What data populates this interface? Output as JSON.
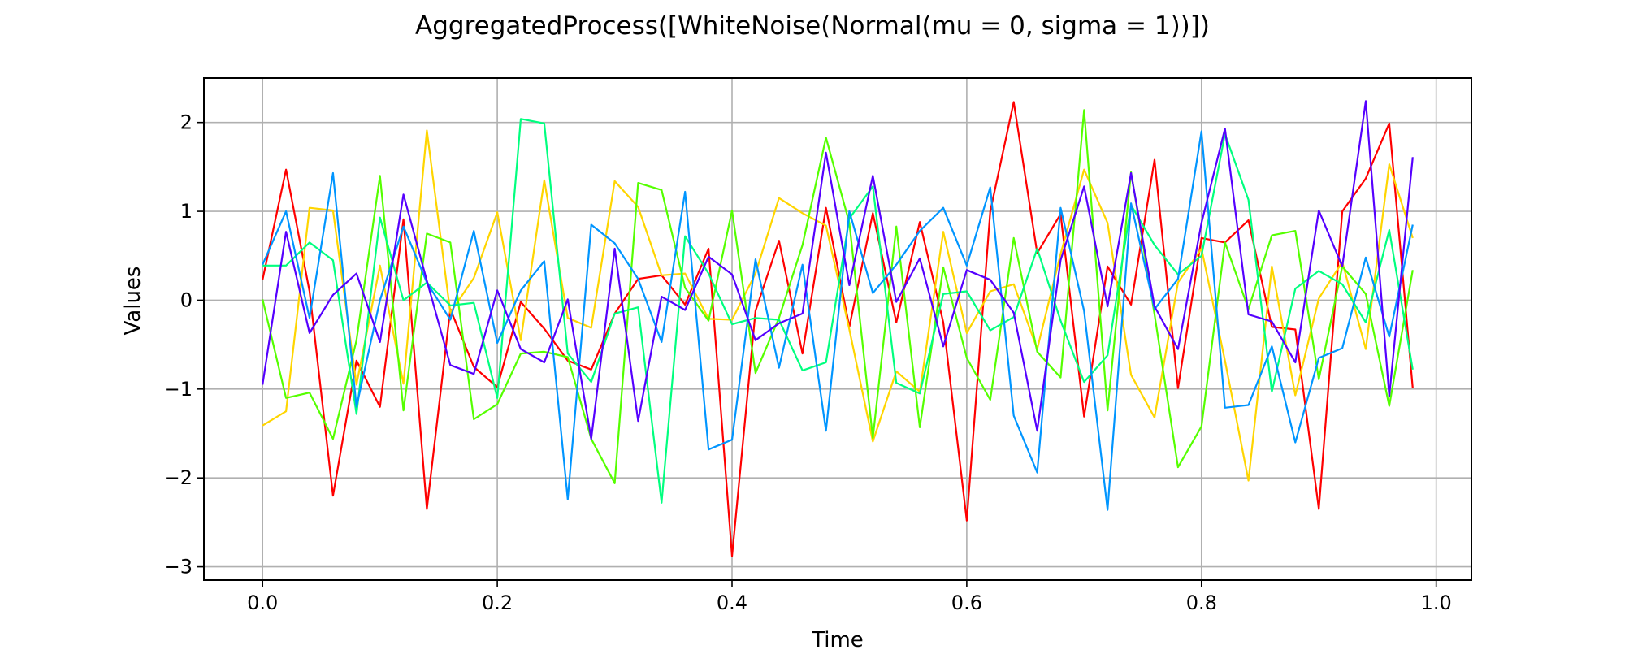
{
  "chart_data": {
    "type": "line",
    "title": "AggregatedProcess([WhiteNoise(Normal(mu = 0, sigma = 1))])",
    "xlabel": "Time",
    "ylabel": "Values",
    "xlim": [
      -0.05,
      1.03
    ],
    "ylim": [
      -3.15,
      2.5
    ],
    "x_ticks": [
      0.0,
      0.2,
      0.4,
      0.6,
      0.8,
      1.0
    ],
    "x_tick_labels": [
      "0.0",
      "0.2",
      "0.4",
      "0.6",
      "0.8",
      "1.0"
    ],
    "y_ticks": [
      2,
      1,
      0,
      -1,
      -2,
      -3
    ],
    "y_tick_labels": [
      "2",
      "1",
      "0",
      "−1",
      "−2",
      "−3"
    ],
    "grid": true,
    "x": [
      0.0,
      0.02,
      0.04,
      0.06,
      0.08,
      0.1,
      0.12,
      0.14,
      0.16,
      0.18,
      0.2,
      0.22,
      0.24,
      0.26,
      0.28,
      0.3,
      0.32,
      0.34,
      0.36,
      0.38,
      0.4,
      0.42,
      0.44,
      0.46,
      0.48,
      0.5,
      0.52,
      0.54,
      0.56,
      0.58,
      0.6,
      0.62,
      0.64,
      0.66,
      0.68,
      0.7,
      0.72,
      0.74,
      0.76,
      0.78,
      0.8,
      0.82,
      0.84,
      0.86,
      0.88,
      0.9,
      0.92,
      0.94,
      0.96,
      0.98
    ],
    "series": [
      {
        "color": "#ff0000",
        "values": [
          0.23,
          1.47,
          0.1,
          -2.2,
          -0.68,
          -1.2,
          0.91,
          -2.35,
          -0.1,
          -0.75,
          -0.98,
          -0.02,
          -0.32,
          -0.68,
          -0.78,
          -0.15,
          0.24,
          0.28,
          -0.05,
          0.58,
          -2.88,
          -0.12,
          0.67,
          -0.6,
          1.04,
          -0.3,
          0.98,
          -0.25,
          0.88,
          -0.25,
          -2.48,
          1.0,
          2.23,
          0.53,
          0.97,
          -1.31,
          0.38,
          -0.05,
          1.58,
          -0.99,
          0.7,
          0.65,
          0.9,
          -0.3,
          -0.33,
          -2.35,
          1.0,
          1.37,
          1.99,
          -0.99
        ]
      },
      {
        "color": "#ffd500",
        "values": [
          -1.41,
          -1.25,
          1.04,
          1.01,
          -0.95,
          0.39,
          -0.94,
          1.91,
          -0.14,
          0.25,
          0.99,
          -0.45,
          1.35,
          -0.2,
          -0.31,
          1.34,
          1.05,
          0.28,
          0.3,
          -0.21,
          -0.22,
          0.3,
          1.15,
          0.98,
          0.84,
          -0.33,
          -1.59,
          -0.8,
          -1.03,
          0.77,
          -0.37,
          0.1,
          0.18,
          -0.55,
          0.52,
          1.47,
          0.87,
          -0.84,
          -1.32,
          0.2,
          0.58,
          -0.68,
          -2.03,
          0.38,
          -1.07,
          0.02,
          0.43,
          -0.55,
          1.53,
          0.7
        ]
      },
      {
        "color": "#55ff00",
        "values": [
          0.01,
          -1.1,
          -1.04,
          -1.56,
          -0.45,
          1.4,
          -1.24,
          0.75,
          0.65,
          -1.34,
          -1.17,
          -0.6,
          -0.58,
          -0.64,
          -1.56,
          -2.06,
          1.32,
          1.24,
          0.14,
          -0.23,
          1.01,
          -0.82,
          -0.2,
          0.62,
          1.83,
          0.87,
          -1.55,
          0.83,
          -1.43,
          0.37,
          -0.65,
          -1.12,
          0.7,
          -0.58,
          -0.87,
          2.14,
          -1.24,
          1.44,
          -0.16,
          -1.88,
          -1.42,
          0.65,
          -0.1,
          0.73,
          0.78,
          -0.89,
          0.38,
          0.07,
          -1.19,
          0.34
        ]
      },
      {
        "color": "#00ff7f",
        "values": [
          0.39,
          0.39,
          0.65,
          0.45,
          -1.28,
          0.93,
          0.0,
          0.2,
          -0.06,
          -0.03,
          -1.1,
          2.04,
          1.99,
          -0.6,
          -0.92,
          -0.15,
          -0.08,
          -2.28,
          0.72,
          0.3,
          -0.27,
          -0.2,
          -0.22,
          -0.79,
          -0.7,
          0.92,
          1.28,
          -0.93,
          -1.05,
          0.07,
          0.1,
          -0.34,
          -0.19,
          0.58,
          -0.23,
          -0.92,
          -0.62,
          1.07,
          0.62,
          0.29,
          0.5,
          1.87,
          1.13,
          -1.03,
          0.13,
          0.33,
          0.18,
          -0.25,
          0.79,
          -0.78
        ]
      },
      {
        "color": "#0095ff",
        "values": [
          0.4,
          1.0,
          -0.2,
          1.43,
          -1.2,
          0.0,
          0.83,
          0.2,
          -0.22,
          0.78,
          -0.48,
          0.11,
          0.44,
          -2.24,
          0.85,
          0.64,
          0.24,
          -0.47,
          1.22,
          -1.68,
          -1.57,
          0.46,
          -0.76,
          0.4,
          -1.47,
          1.0,
          0.08,
          0.4,
          0.78,
          1.04,
          0.39,
          1.27,
          -1.3,
          -1.94,
          1.04,
          -0.12,
          -2.36,
          1.09,
          -0.1,
          0.24,
          1.9,
          -1.21,
          -1.18,
          -0.52,
          -1.6,
          -0.65,
          -0.54,
          0.48,
          -0.41,
          0.85
        ]
      },
      {
        "color": "#5500ff",
        "values": [
          -0.95,
          0.77,
          -0.37,
          0.06,
          0.3,
          -0.47,
          1.19,
          0.22,
          -0.73,
          -0.83,
          0.11,
          -0.55,
          -0.7,
          0.01,
          -1.56,
          0.58,
          -1.36,
          0.04,
          -0.11,
          0.49,
          0.29,
          -0.45,
          -0.26,
          -0.15,
          1.66,
          0.17,
          1.4,
          -0.02,
          0.47,
          -0.52,
          0.34,
          0.23,
          -0.14,
          -1.47,
          0.45,
          1.28,
          -0.07,
          1.43,
          -0.07,
          -0.55,
          0.87,
          1.93,
          -0.16,
          -0.24,
          -0.7,
          1.01,
          0.38,
          2.24,
          -1.08,
          1.61
        ]
      }
    ]
  }
}
